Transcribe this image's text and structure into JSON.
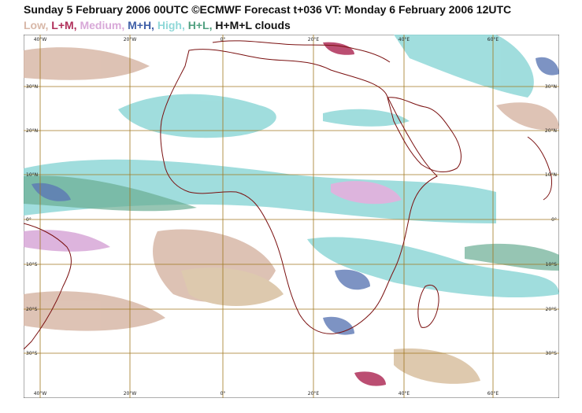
{
  "header": {
    "title": "Sunday 5 February 2006 00UTC ©ECMWF Forecast t+036 VT: Monday 6 February 2006 12UTC"
  },
  "legend": [
    {
      "label": "Low,",
      "color": "#d8b8a8"
    },
    {
      "label": "L+M,",
      "color": "#b0305a"
    },
    {
      "label": "Medium,",
      "color": "#d8a8d8"
    },
    {
      "label": "M+H,",
      "color": "#4060a8"
    },
    {
      "label": "High,",
      "color": "#90d8d8"
    },
    {
      "label": "H+L,",
      "color": "#50a080"
    },
    {
      "label": "H+M+L clouds",
      "color": "#111111"
    }
  ],
  "colors": {
    "grid": "#a07820",
    "coast": "#7a1010",
    "ocean": "#ffffff",
    "desert": "#d8c0a0"
  },
  "axes": {
    "lon_labels": [
      "40°W",
      "20°W",
      "0°",
      "20°E",
      "40°E",
      "60°E"
    ],
    "lat_labels": [
      "30°N",
      "20°N",
      "10°N",
      "0°",
      "10°S",
      "20°S",
      "30°S"
    ]
  }
}
